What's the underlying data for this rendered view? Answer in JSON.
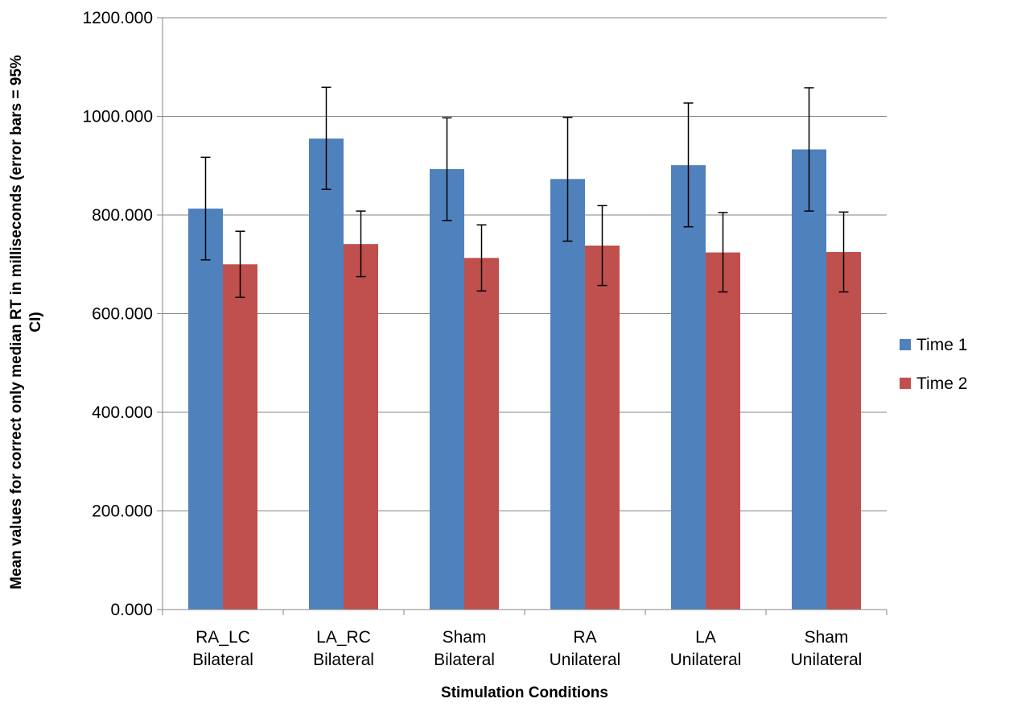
{
  "chart_data": {
    "type": "bar",
    "title": "",
    "xlabel": "Stimulation Conditions",
    "ylabel": "Mean values for correct only median RT in milliseconds (error bars = 95% CI)",
    "ylim": [
      0,
      1200
    ],
    "ytick_values": [
      0,
      200,
      400,
      600,
      800,
      1000,
      1200
    ],
    "ytick_labels": [
      "0.000",
      "200.000",
      "400.000",
      "600.000",
      "800.000",
      "1000.000",
      "1200.000"
    ],
    "grid": true,
    "legend_position": "right",
    "categories": [
      [
        "RA_LC",
        "Bilateral"
      ],
      [
        "LA_RC",
        "Bilateral"
      ],
      [
        "Sham",
        "Bilateral"
      ],
      [
        "RA",
        "Unilateral"
      ],
      [
        "LA",
        "Unilateral"
      ],
      [
        "Sham",
        "Unilateral"
      ]
    ],
    "series": [
      {
        "name": "Time 1",
        "color": "#4F81BD",
        "values": [
          813,
          955,
          893,
          873,
          901,
          933
        ],
        "error_low": [
          709,
          852,
          789,
          747,
          776,
          808
        ],
        "error_high": [
          917,
          1059,
          997,
          998,
          1027,
          1058
        ]
      },
      {
        "name": "Time 2",
        "color": "#C0504D",
        "values": [
          700,
          741,
          713,
          738,
          724,
          725
        ],
        "error_low": [
          633,
          675,
          646,
          657,
          644,
          644
        ],
        "error_high": [
          767,
          808,
          780,
          819,
          805,
          806
        ]
      }
    ]
  }
}
